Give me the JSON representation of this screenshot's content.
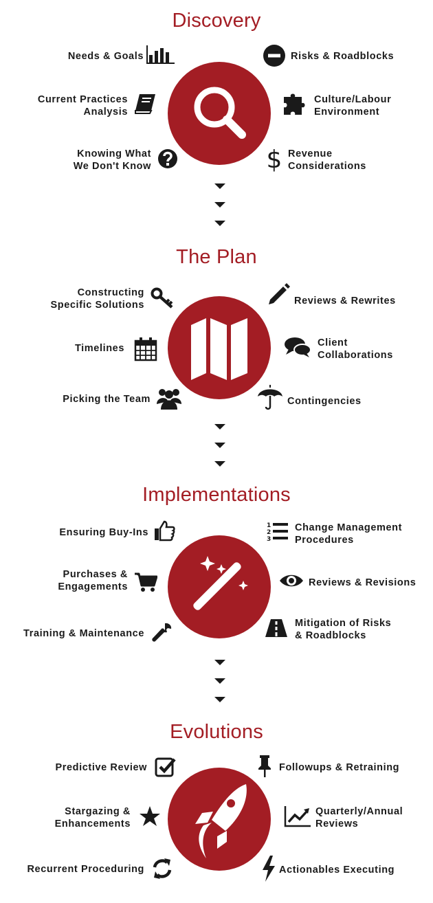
{
  "sections": [
    {
      "title": "Discovery",
      "left": [
        {
          "lines": [
            "Needs & Goals"
          ],
          "icon": "bar-chart-icon"
        },
        {
          "lines": [
            "Current Practices",
            "Analysis"
          ],
          "icon": "book-icon"
        },
        {
          "lines": [
            "Knowing What",
            "We Don't Know"
          ],
          "icon": "question-icon"
        }
      ],
      "right": [
        {
          "lines": [
            "Risks & Roadblocks"
          ],
          "icon": "minus-circle-icon"
        },
        {
          "lines": [
            "Culture/Labour",
            "Environment"
          ],
          "icon": "puzzle-icon"
        },
        {
          "lines": [
            "Revenue",
            "Considerations"
          ],
          "icon": "dollar-icon"
        }
      ],
      "center_icon": "magnifier-icon"
    },
    {
      "title": "The Plan",
      "left": [
        {
          "lines": [
            "Constructing",
            "Specific Solutions"
          ],
          "icon": "key-icon"
        },
        {
          "lines": [
            "Timelines"
          ],
          "icon": "calendar-icon"
        },
        {
          "lines": [
            "Picking the Team"
          ],
          "icon": "team-icon"
        }
      ],
      "right": [
        {
          "lines": [
            "Reviews & Rewrites"
          ],
          "icon": "pencil-icon"
        },
        {
          "lines": [
            "Client",
            "Collaborations"
          ],
          "icon": "chat-icon"
        },
        {
          "lines": [
            "Contingencies"
          ],
          "icon": "umbrella-icon"
        }
      ],
      "center_icon": "map-icon"
    },
    {
      "title": "Implementations",
      "left": [
        {
          "lines": [
            "Ensuring Buy-Ins"
          ],
          "icon": "thumbs-up-icon"
        },
        {
          "lines": [
            "Purchases &",
            "Engagements"
          ],
          "icon": "cart-icon"
        },
        {
          "lines": [
            "Training & Maintenance"
          ],
          "icon": "wrench-icon"
        }
      ],
      "right": [
        {
          "lines": [
            "Change Management",
            "Procedures"
          ],
          "icon": "numbered-list-icon"
        },
        {
          "lines": [
            "Reviews & Revisions"
          ],
          "icon": "eye-icon"
        },
        {
          "lines": [
            "Mitigation of Risks",
            "& Roadblocks"
          ],
          "icon": "road-icon"
        }
      ],
      "center_icon": "magic-wand-icon"
    },
    {
      "title": "Evolutions",
      "left": [
        {
          "lines": [
            "Predictive Review"
          ],
          "icon": "checkbox-icon"
        },
        {
          "lines": [
            "Stargazing &",
            "Enhancements"
          ],
          "icon": "star-icon"
        },
        {
          "lines": [
            "Recurrent Proceduring"
          ],
          "icon": "refresh-icon"
        }
      ],
      "right": [
        {
          "lines": [
            "Followups & Retraining"
          ],
          "icon": "pushpin-icon"
        },
        {
          "lines": [
            "Quarterly/Annual",
            "Reviews"
          ],
          "icon": "line-chart-icon"
        },
        {
          "lines": [
            "Actionables Executing"
          ],
          "icon": "lightning-icon"
        }
      ],
      "center_icon": "rocket-icon"
    }
  ],
  "colors": {
    "accent": "#a31d24",
    "text": "#1a1a1a"
  }
}
